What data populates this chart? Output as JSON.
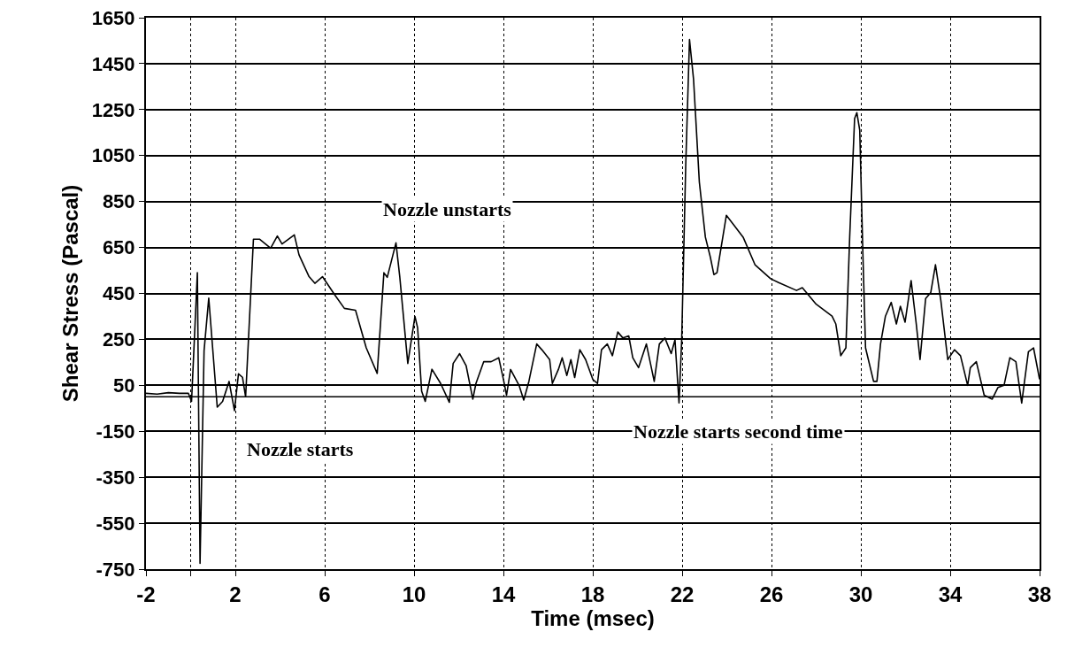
{
  "chart_data": {
    "type": "line",
    "xlabel": "Time (msec)",
    "ylabel": "Shear Stress (Pascal)",
    "xlim": [
      -2,
      38
    ],
    "xticks": [
      -2,
      {
        "value": 0,
        "label": null
      },
      2,
      6,
      10,
      14,
      18,
      22,
      26,
      30,
      34,
      38
    ],
    "ylim": [
      -750,
      1650
    ],
    "yticks": [
      -750,
      -550,
      -350,
      -150,
      50,
      250,
      450,
      650,
      850,
      1050,
      1250,
      1450,
      1650
    ],
    "grid": true,
    "marker": "none",
    "line_style": "solid",
    "ref_lines": [
      {
        "axis": "y",
        "value": 0,
        "label": null
      }
    ],
    "annotations": [
      "Nozzle unstarts",
      "Nozzle starts",
      "Nozzle starts second time"
    ],
    "series": [
      {
        "color": "#000000",
        "x": [
          -2,
          -1.5,
          -1,
          -0.5,
          -0.1,
          0.04,
          0.3,
          0.42,
          0.6,
          0.81,
          1.19,
          1.43,
          1.72,
          1.96,
          2.14,
          2.32,
          2.46,
          2.81,
          3.08,
          3.58,
          3.88,
          4.09,
          4.64,
          4.85,
          5.3,
          5.56,
          5.9,
          6.44,
          6.88,
          7.38,
          7.86,
          8.35,
          8.65,
          8.8,
          9.19,
          9.36,
          9.72,
          10.04,
          10.16,
          10.34,
          10.5,
          10.8,
          11.19,
          11.58,
          11.75,
          12.04,
          12.33,
          12.63,
          12.77,
          13.12,
          13.45,
          13.79,
          14,
          14.14,
          14.32,
          14.7,
          14.91,
          15.14,
          15.49,
          15.72,
          16.07,
          16.19,
          16.46,
          16.63,
          16.84,
          17.02,
          17.19,
          17.42,
          17.68,
          18,
          18.21,
          18.39,
          18.65,
          18.88,
          19.12,
          19.35,
          19.61,
          19.79,
          20.05,
          20.4,
          20.75,
          20.98,
          21.23,
          21.51,
          21.68,
          21.86,
          21.98,
          22.16,
          22.33,
          22.51,
          22.77,
          23.04,
          23.26,
          23.42,
          23.56,
          23.98,
          24.73,
          25.26,
          25.96,
          26.32,
          27.12,
          27.38,
          28,
          28.71,
          28.88,
          29.1,
          29.33,
          29.5,
          29.72,
          29.82,
          29.95,
          30.09,
          30.21,
          30.57,
          30.72,
          30.88,
          31.1,
          31.36,
          31.59,
          31.77,
          31.98,
          32.25,
          32.48,
          32.65,
          32.9,
          33.13,
          33.34,
          33.58,
          33.89,
          34.19,
          34.46,
          34.78,
          34.9,
          35.17,
          35.52,
          35.88,
          36.14,
          36.41,
          36.67,
          36.94,
          37.2,
          37.5,
          37.73,
          38
        ],
        "values": [
          15,
          12,
          18,
          15,
          15,
          -20,
          540,
          -725,
          200,
          430,
          -45,
          -20,
          67,
          -60,
          100,
          85,
          0,
          686,
          686,
          647,
          700,
          665,
          705,
          618,
          523,
          494,
          523,
          445,
          385,
          377,
          213,
          102,
          540,
          520,
          670,
          523,
          145,
          350,
          300,
          24,
          -20,
          120,
          58,
          -24,
          145,
          188,
          136,
          -10,
          58,
          153,
          153,
          170,
          76,
          7,
          119,
          50,
          -14,
          67,
          230,
          205,
          162,
          58,
          119,
          170,
          93,
          162,
          84,
          205,
          162,
          76,
          58,
          205,
          230,
          179,
          282,
          256,
          265,
          170,
          127,
          230,
          67,
          230,
          256,
          188,
          248,
          -27,
          248,
          1005,
          1555,
          1383,
          935,
          695,
          609,
          532,
          540,
          790,
          695,
          575,
          514,
          497,
          463,
          475,
          403,
          351,
          317,
          179,
          213,
          695,
          1211,
          1237,
          1160,
          626,
          213,
          67,
          67,
          230,
          351,
          411,
          317,
          394,
          325,
          506,
          317,
          162,
          428,
          454,
          575,
          420,
          162,
          205,
          179,
          50,
          127,
          153,
          7,
          -10,
          41,
          50,
          170,
          153,
          -27,
          196,
          213,
          76
        ]
      }
    ]
  }
}
